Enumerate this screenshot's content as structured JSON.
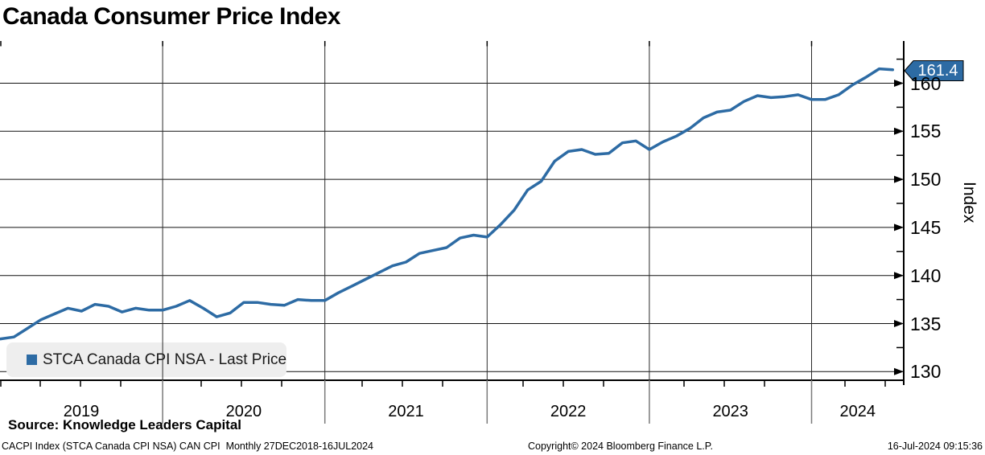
{
  "title": "Canada Consumer Price Index",
  "legend": {
    "label": "STCA Canada CPI NSA - Last Price"
  },
  "last_price_callout": "161.4",
  "y_axis": {
    "label": "Index",
    "ticks": [
      160,
      155,
      150,
      145,
      140,
      135,
      130
    ],
    "minor_step": 2.5
  },
  "x_axis": {
    "year_labels": [
      "2019",
      "2020",
      "2021",
      "2022",
      "2023",
      "2024"
    ]
  },
  "source_line": "Source: Knowledge Leaders Capital",
  "footer": {
    "left": "CACPI Index (STCA Canada CPI NSA) CAN CPI  Monthly 27DEC2018-16JUL2024",
    "center": "Copyright© 2024 Bloomberg Finance L.P.",
    "right": "16-Jul-2024 09:15:36"
  },
  "colors": {
    "line": "#2d6ba4",
    "callout_bg": "#2d6ba4",
    "legend_marker": "#2d6ba4",
    "legend_bg": "#eeeeee",
    "gridline": "#111111",
    "year_line": "#2b2b2b",
    "axis": "#000000",
    "year_separator": "#7a7a7a"
  },
  "chart_data": {
    "type": "line",
    "title": "Canada Consumer Price Index",
    "series": [
      {
        "name": "STCA Canada CPI NSA - Last Price",
        "values": [
          133.4,
          133.6,
          134.5,
          135.4,
          136.0,
          136.6,
          136.3,
          137.0,
          136.8,
          136.2,
          136.6,
          136.4,
          136.4,
          136.8,
          137.4,
          136.6,
          135.7,
          136.1,
          137.2,
          137.2,
          137.0,
          136.9,
          137.5,
          137.4,
          137.4,
          138.2,
          138.9,
          139.6,
          140.3,
          141.0,
          141.4,
          142.3,
          142.6,
          142.9,
          143.9,
          144.2,
          144.0,
          145.3,
          146.8,
          148.9,
          149.8,
          151.9,
          152.9,
          153.1,
          152.6,
          152.7,
          153.8,
          154.0,
          153.1,
          153.9,
          154.5,
          155.3,
          156.4,
          157.0,
          157.2,
          158.1,
          158.7,
          158.5,
          158.6,
          158.8,
          158.3,
          158.3,
          158.8,
          159.8,
          160.6,
          161.5,
          161.4
        ]
      }
    ],
    "x": [
      "2018-12",
      "2019-01",
      "2019-02",
      "2019-03",
      "2019-04",
      "2019-05",
      "2019-06",
      "2019-07",
      "2019-08",
      "2019-09",
      "2019-10",
      "2019-11",
      "2019-12",
      "2020-01",
      "2020-02",
      "2020-03",
      "2020-04",
      "2020-05",
      "2020-06",
      "2020-07",
      "2020-08",
      "2020-09",
      "2020-10",
      "2020-11",
      "2020-12",
      "2021-01",
      "2021-02",
      "2021-03",
      "2021-04",
      "2021-05",
      "2021-06",
      "2021-07",
      "2021-08",
      "2021-09",
      "2021-10",
      "2021-11",
      "2021-12",
      "2022-01",
      "2022-02",
      "2022-03",
      "2022-04",
      "2022-05",
      "2022-06",
      "2022-07",
      "2022-08",
      "2022-09",
      "2022-10",
      "2022-11",
      "2022-12",
      "2023-01",
      "2023-02",
      "2023-03",
      "2023-04",
      "2023-05",
      "2023-06",
      "2023-07",
      "2023-08",
      "2023-09",
      "2023-10",
      "2023-11",
      "2023-12",
      "2024-01",
      "2024-02",
      "2024-03",
      "2024-04",
      "2024-05",
      "2024-06"
    ],
    "frequency": "monthly",
    "xlabel": "",
    "ylabel": "Index",
    "ylim": [
      128.9,
      164.3
    ],
    "grid": true,
    "legend_position": "bottom-left",
    "last_value_label": "161.4"
  }
}
